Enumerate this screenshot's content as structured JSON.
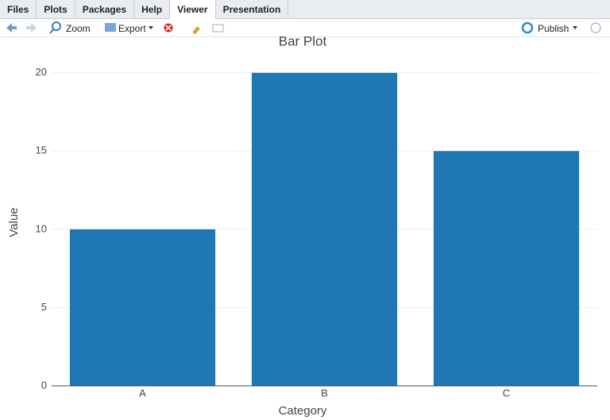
{
  "tabs": [
    "Files",
    "Plots",
    "Packages",
    "Help",
    "Viewer",
    "Presentation"
  ],
  "toolbar": {
    "zoom": "Zoom",
    "export": "Export",
    "publish": "Publish"
  },
  "chart_data": {
    "type": "bar",
    "title": "Bar Plot",
    "x_label": "Category",
    "y_label": "Value",
    "categories": [
      "A",
      "B",
      "C"
    ],
    "values": [
      10,
      20,
      15
    ],
    "color": "#1f77b4",
    "ylim": [
      0,
      21.05
    ],
    "yticks": [
      0,
      5,
      10,
      15,
      20
    ],
    "grid": true
  }
}
